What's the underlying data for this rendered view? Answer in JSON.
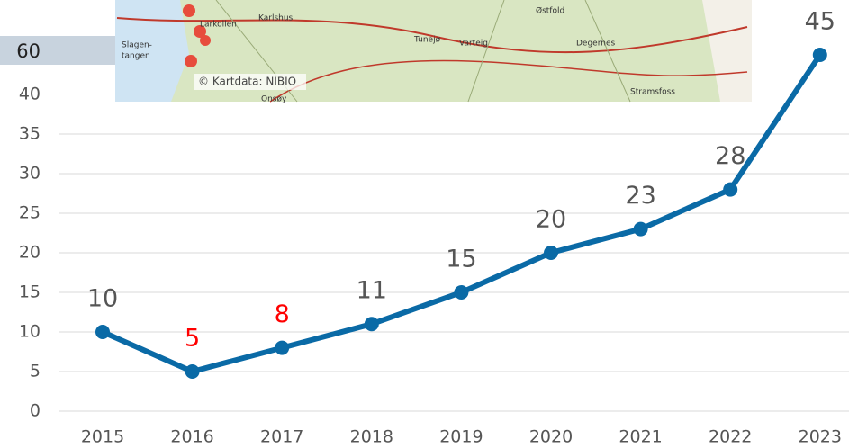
{
  "chart_data": {
    "type": "line",
    "categories": [
      "2015",
      "2016",
      "2017",
      "2018",
      "2019",
      "2020",
      "2021",
      "2022",
      "2023"
    ],
    "values": [
      10,
      5,
      8,
      11,
      15,
      20,
      23,
      28,
      45
    ],
    "color": "#0a6aa6",
    "value_label_colors": [
      "#555555",
      "#ff0000",
      "#ff0000",
      "#555555",
      "#555555",
      "#555555",
      "#555555",
      "#555555",
      "#555555"
    ],
    "ylim": [
      0,
      45
    ],
    "yticks": [
      0,
      5,
      10,
      15,
      20,
      25,
      30,
      35,
      40
    ],
    "grid": true,
    "overlay_tick_label": "60",
    "map": {
      "credit": "© Kartdata: NIBIO",
      "places": [
        "Larkollen",
        "Karlshus",
        "Slagen-",
        "tangen",
        "Østfold",
        "Varteig",
        "Degernes",
        "Stramsfoss",
        "Tunejø",
        "Onsøy"
      ]
    }
  }
}
